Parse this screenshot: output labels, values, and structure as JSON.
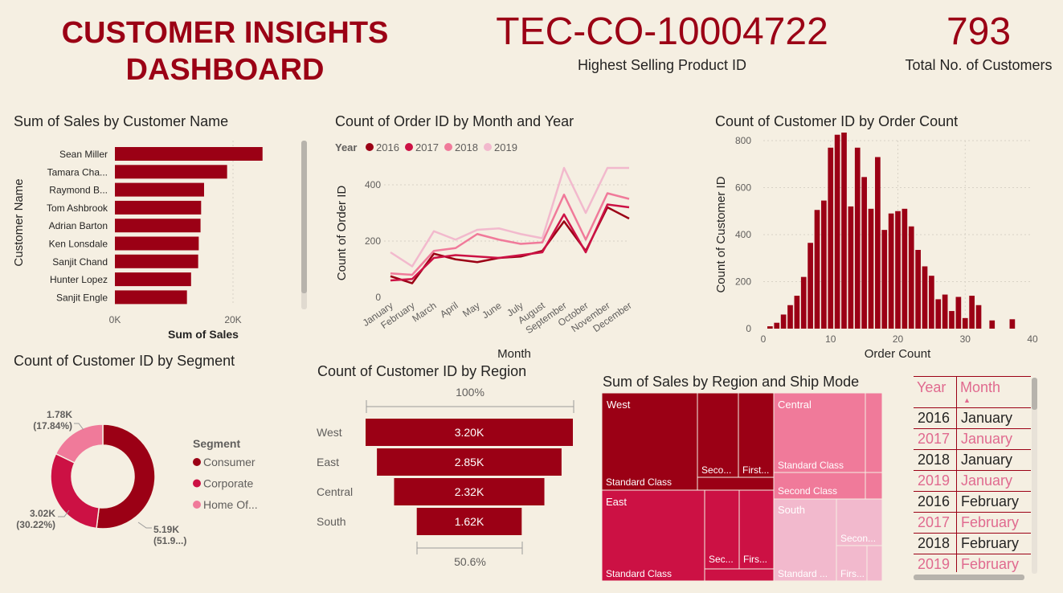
{
  "header": {
    "title_line1": "CUSTOMER INSIGHTS",
    "title_line2": "DASHBOARD"
  },
  "kpis": {
    "product": {
      "value": "TEC-CO-10004722",
      "label": "Highest Selling Product ID"
    },
    "customers": {
      "value": "793",
      "label": "Total No. of Customers"
    }
  },
  "colors": {
    "dark": "#9B0015",
    "mid": "#CC1144",
    "light": "#F07A9A",
    "pale": "#F2B9CD",
    "background": "#F5EFE2"
  },
  "chart_data": [
    {
      "id": "sales_by_customer",
      "type": "bar",
      "title": "Sum of Sales by Customer Name",
      "xlabel": "Sum of Sales",
      "ylabel": "Customer Name",
      "categories": [
        "Sean Miller",
        "Tamara Cha...",
        "Raymond B...",
        "Tom Ashbrook",
        "Adrian Barton",
        "Ken Lonsdale",
        "Sanjit Chand",
        "Hunter Lopez",
        "Sanjit Engle"
      ],
      "values": [
        25000,
        19000,
        15100,
        14600,
        14500,
        14200,
        14100,
        12900,
        12200
      ],
      "xticks": [
        "0K",
        "20K"
      ],
      "xlim": [
        0,
        30000
      ],
      "grid": true
    },
    {
      "id": "orders_by_month",
      "type": "line",
      "title": "Count of Order ID by Month and Year",
      "xlabel": "Month",
      "ylabel": "Count of Order ID",
      "legend_title": "Year",
      "categories": [
        "January",
        "February",
        "March",
        "April",
        "May",
        "June",
        "July",
        "August",
        "September",
        "October",
        "November",
        "December"
      ],
      "ylim": [
        0,
        500
      ],
      "yticks": [
        "0",
        "200",
        "400"
      ],
      "series": [
        {
          "name": "2016",
          "color": "#9B0015",
          "values": [
            75,
            50,
            155,
            135,
            125,
            140,
            145,
            165,
            270,
            165,
            320,
            280
          ]
        },
        {
          "name": "2017",
          "color": "#CC1144",
          "values": [
            60,
            65,
            140,
            150,
            145,
            140,
            150,
            160,
            295,
            160,
            330,
            320
          ]
        },
        {
          "name": "2018",
          "color": "#F07A9A",
          "values": [
            85,
            80,
            165,
            175,
            225,
            205,
            190,
            195,
            365,
            205,
            370,
            350
          ]
        },
        {
          "name": "2019",
          "color": "#F2B9CD",
          "values": [
            160,
            110,
            235,
            205,
            240,
            245,
            225,
            210,
            460,
            300,
            460,
            460
          ]
        }
      ]
    },
    {
      "id": "customers_by_order_count",
      "type": "bar",
      "title": "Count of Customer ID by Order Count",
      "xlabel": "Order Count",
      "ylabel": "Count of Customer ID",
      "x": [
        1,
        2,
        3,
        4,
        5,
        6,
        7,
        8,
        9,
        10,
        11,
        12,
        13,
        14,
        15,
        16,
        17,
        18,
        19,
        20,
        21,
        22,
        23,
        24,
        25,
        26,
        27,
        28,
        29,
        30,
        31,
        32,
        34,
        37
      ],
      "values": [
        10,
        25,
        60,
        100,
        140,
        220,
        365,
        505,
        545,
        770,
        825,
        835,
        520,
        770,
        645,
        510,
        730,
        420,
        490,
        500,
        510,
        435,
        335,
        265,
        225,
        125,
        145,
        75,
        135,
        45,
        140,
        100,
        35,
        40
      ],
      "xlim": [
        0,
        40
      ],
      "ylim": [
        0,
        800
      ],
      "xticks": [
        "0",
        "10",
        "20",
        "30",
        "40"
      ],
      "yticks": [
        "0",
        "200",
        "400",
        "600",
        "800"
      ]
    },
    {
      "id": "customers_by_segment",
      "type": "pie",
      "title": "Count of Customer ID by Segment",
      "legend_title": "Segment",
      "labels": [
        "Consumer",
        "Corporate",
        "Home Of..."
      ],
      "values": [
        5190,
        3020,
        1780
      ],
      "data_labels": [
        [
          "5.19K",
          "(51.9...)"
        ],
        [
          "3.02K",
          "(30.22%)"
        ],
        [
          "1.78K",
          "(17.84%)"
        ]
      ],
      "colors": [
        "#9B0015",
        "#CC1144",
        "#F07A9A"
      ]
    },
    {
      "id": "customers_by_region",
      "type": "bar",
      "title": "Count of Customer ID by Region",
      "categories": [
        "West",
        "East",
        "Central",
        "South"
      ],
      "values": [
        3200,
        2850,
        2320,
        1620
      ],
      "value_labels": [
        "3.20K",
        "2.85K",
        "2.32K",
        "1.62K"
      ],
      "top_pct": "100%",
      "bottom_pct": "50.6%"
    },
    {
      "id": "sales_by_region_shipmode",
      "type": "heatmap",
      "title": "Sum of Sales by Region and Ship Mode",
      "regions": [
        {
          "name": "West",
          "color": "#9B0015",
          "modes": [
            "Standard Class",
            "Seco...",
            "First..."
          ]
        },
        {
          "name": "Central",
          "color": "#F07A9A",
          "modes": [
            "Standard Class",
            "Second Class"
          ]
        },
        {
          "name": "East",
          "color": "#CC1144",
          "modes": [
            "Standard Class",
            "Sec...",
            "Firs..."
          ]
        },
        {
          "name": "South",
          "color": "#F2B9CD",
          "modes": [
            "Standard ...",
            "Secon...",
            "Firs..."
          ]
        }
      ]
    }
  ],
  "table": {
    "headers": [
      "Year",
      "Month"
    ],
    "rows": [
      [
        "2016",
        "January"
      ],
      [
        "2017",
        "January"
      ],
      [
        "2018",
        "January"
      ],
      [
        "2019",
        "January"
      ],
      [
        "2016",
        "February"
      ],
      [
        "2017",
        "February"
      ],
      [
        "2018",
        "February"
      ],
      [
        "2019",
        "February"
      ]
    ]
  }
}
